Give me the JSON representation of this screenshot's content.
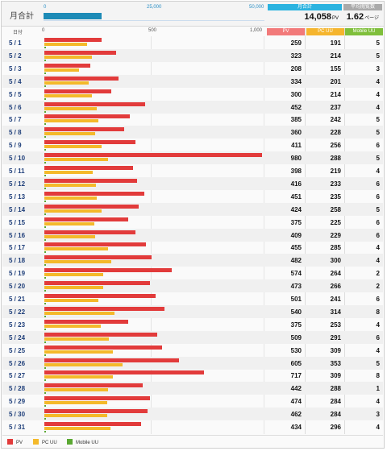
{
  "header": {
    "label": "月合計",
    "gauge_ticks": [
      "0",
      "25,000",
      "50,000"
    ],
    "gauge_max": 50000,
    "total_pv_caption": "月合計",
    "total_pv_value": "14,058",
    "total_pv_unit": "PV",
    "avg_caption": "平均閲覧数",
    "avg_value": "1.62",
    "avg_unit": "ページ",
    "total_pv_number": 14058
  },
  "columns": {
    "date": "日付",
    "pv": "PV",
    "pc": "PC UU",
    "mobile": "Mobile UU"
  },
  "colors": {
    "pv": "#e23b3b",
    "pc": "#f4b92a",
    "mobile": "#5aa832",
    "pv_head": "#f27a7a",
    "pc_head": "#f5b52e",
    "mobile_head": "#7fbf3b",
    "gauge": "#1d8bb7",
    "summary_head": "#2bb3e0",
    "avg_head": "#aaaaaa"
  },
  "chart_data": {
    "type": "bar",
    "axis_ticks": [
      "0",
      "500",
      "1,000"
    ],
    "xlim": [
      0,
      1000
    ],
    "categories": [
      "5 / 1",
      "5 / 2",
      "5 / 3",
      "5 / 4",
      "5 / 5",
      "5 / 6",
      "5 / 7",
      "5 / 8",
      "5 / 9",
      "5 / 10",
      "5 / 11",
      "5 / 12",
      "5 / 13",
      "5 / 14",
      "5 / 15",
      "5 / 16",
      "5 / 17",
      "5 / 18",
      "5 / 19",
      "5 / 20",
      "5 / 21",
      "5 / 22",
      "5 / 23",
      "5 / 24",
      "5 / 25",
      "5 / 26",
      "5 / 27",
      "5 / 28",
      "5 / 29",
      "5 / 30",
      "5 / 31"
    ],
    "series": [
      {
        "name": "PV",
        "values": [
          259,
          323,
          208,
          334,
          300,
          452,
          385,
          360,
          411,
          980,
          398,
          416,
          451,
          424,
          375,
          409,
          455,
          482,
          574,
          473,
          501,
          540,
          375,
          509,
          530,
          605,
          717,
          442,
          474,
          462,
          434
        ]
      },
      {
        "name": "PC UU",
        "values": [
          191,
          214,
          155,
          201,
          214,
          237,
          242,
          228,
          256,
          288,
          219,
          233,
          235,
          258,
          225,
          229,
          285,
          300,
          264,
          266,
          241,
          314,
          253,
          291,
          309,
          353,
          309,
          288,
          284,
          284,
          296
        ]
      },
      {
        "name": "Mobile UU",
        "values": [
          5,
          5,
          3,
          4,
          4,
          4,
          5,
          5,
          6,
          5,
          4,
          6,
          6,
          5,
          6,
          6,
          4,
          4,
          2,
          2,
          6,
          8,
          4,
          6,
          4,
          5,
          8,
          1,
          4,
          3,
          4
        ]
      }
    ]
  },
  "legend": [
    {
      "label": "PV",
      "color": "#e23b3b"
    },
    {
      "label": "PC UU",
      "color": "#f4b92a"
    },
    {
      "label": "Mobile UU",
      "color": "#5aa832"
    }
  ]
}
